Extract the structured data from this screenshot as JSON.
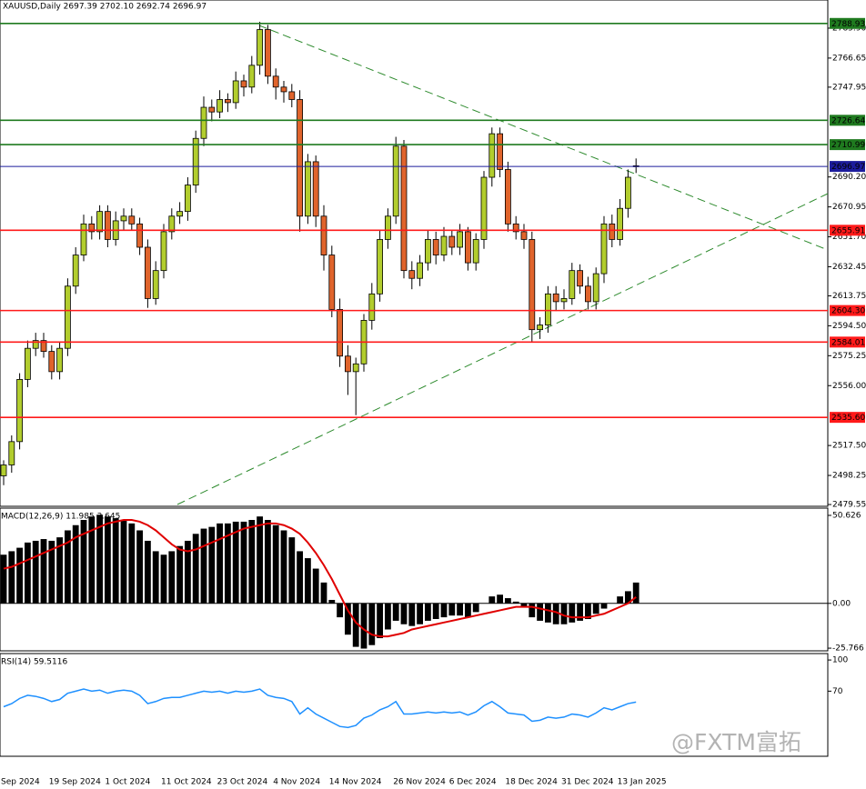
{
  "chart_data": [
    {
      "type": "candlestick",
      "title": "XAUUSD,Daily 2697.39 2702.10 2692.74 2696.97",
      "categories": [
        "Sep 2024",
        null,
        null,
        null,
        null,
        null,
        "19 Sep 2024",
        null,
        null,
        null,
        null,
        null,
        null,
        "1 Oct 2024",
        null,
        null,
        null,
        null,
        null,
        null,
        "11 Oct 2024",
        null,
        null,
        null,
        null,
        null,
        null,
        "23 Oct 2024",
        null,
        null,
        null,
        null,
        null,
        null,
        "4 Nov 2024",
        null,
        null,
        null,
        null,
        null,
        null,
        "14 Nov 2024",
        null,
        null,
        null,
        null,
        null,
        null,
        null,
        "26 Nov 2024",
        null,
        null,
        null,
        null,
        null,
        null,
        "6 Dec 2024",
        null,
        null,
        null,
        null,
        null,
        null,
        "18 Dec 2024",
        null,
        null,
        null,
        null,
        null,
        null,
        "31 Dec 2024",
        null,
        null,
        null,
        null,
        null,
        null,
        "13 Jan 2025",
        null,
        null
      ],
      "open": [
        2498,
        2505,
        2520,
        2560,
        2580,
        2585,
        2578,
        2565,
        2580,
        2620,
        2640,
        2660,
        2655,
        2668,
        2650,
        2662,
        2665,
        2660,
        2645,
        2612,
        2630,
        2655,
        2665,
        2668,
        2685,
        2715,
        2735,
        2732,
        2740,
        2738,
        2752,
        2748,
        2762,
        2785,
        2755,
        2748,
        2745,
        2740,
        2665,
        2700,
        2665,
        2640,
        2605,
        2575,
        2565,
        2570,
        2598,
        2615,
        2650,
        2665,
        2710,
        2630,
        2625,
        2635,
        2650,
        2640,
        2652,
        2645,
        2655,
        2635,
        2650,
        2690,
        2718,
        2695,
        2660,
        2655,
        2650,
        2592,
        2595,
        2615,
        2610,
        2612,
        2630,
        2620,
        2610,
        2628,
        2660,
        2650,
        2670,
        2697.39
      ],
      "high": [
        2508,
        2524,
        2564,
        2585,
        2590,
        2590,
        2582,
        2584,
        2625,
        2645,
        2666,
        2665,
        2672,
        2672,
        2668,
        2670,
        2670,
        2664,
        2650,
        2636,
        2660,
        2670,
        2674,
        2690,
        2720,
        2742,
        2740,
        2746,
        2744,
        2758,
        2756,
        2768,
        2790,
        2788,
        2760,
        2752,
        2750,
        2746,
        2705,
        2704,
        2672,
        2646,
        2612,
        2582,
        2574,
        2602,
        2622,
        2656,
        2670,
        2716,
        2714,
        2636,
        2640,
        2656,
        2655,
        2658,
        2656,
        2660,
        2658,
        2654,
        2694,
        2722,
        2722,
        2700,
        2665,
        2660,
        2655,
        2600,
        2620,
        2620,
        2618,
        2635,
        2634,
        2626,
        2632,
        2665,
        2666,
        2676,
        2695,
        2702.1
      ],
      "low": [
        2492,
        2500,
        2515,
        2555,
        2575,
        2574,
        2560,
        2560,
        2575,
        2615,
        2636,
        2650,
        2650,
        2645,
        2646,
        2656,
        2656,
        2640,
        2606,
        2608,
        2625,
        2650,
        2660,
        2662,
        2680,
        2710,
        2726,
        2728,
        2732,
        2734,
        2742,
        2744,
        2756,
        2750,
        2740,
        2738,
        2735,
        2655,
        2660,
        2658,
        2630,
        2600,
        2568,
        2550,
        2537,
        2565,
        2592,
        2610,
        2644,
        2660,
        2625,
        2618,
        2620,
        2630,
        2634,
        2636,
        2640,
        2640,
        2630,
        2630,
        2644,
        2684,
        2690,
        2655,
        2650,
        2644,
        2584,
        2586,
        2590,
        2604,
        2605,
        2608,
        2615,
        2605,
        2605,
        2622,
        2645,
        2646,
        2664,
        2692.74
      ],
      "close": [
        2505,
        2520,
        2560,
        2580,
        2585,
        2578,
        2565,
        2580,
        2620,
        2640,
        2660,
        2655,
        2668,
        2650,
        2662,
        2665,
        2660,
        2645,
        2612,
        2630,
        2655,
        2665,
        2668,
        2685,
        2715,
        2735,
        2732,
        2740,
        2738,
        2752,
        2748,
        2762,
        2785,
        2755,
        2748,
        2745,
        2740,
        2665,
        2700,
        2665,
        2640,
        2605,
        2575,
        2565,
        2570,
        2598,
        2615,
        2650,
        2665,
        2710,
        2630,
        2625,
        2635,
        2650,
        2640,
        2652,
        2645,
        2655,
        2635,
        2650,
        2690,
        2718,
        2695,
        2660,
        2655,
        2650,
        2592,
        2595,
        2615,
        2610,
        2612,
        2630,
        2620,
        2610,
        2628,
        2660,
        2650,
        2670,
        2690,
        2696.97
      ],
      "up_color": "#b2cd2e",
      "down_color": "#e0642c",
      "ylim": [
        2478.4,
        2804.0
      ],
      "yticks": [
        {
          "value": 2785.9,
          "label": "2785.90"
        },
        2766.65,
        2747.95,
        {
          "value": 2690.2,
          "label": "2690.20"
        },
        2670.95,
        {
          "value": 2651.7,
          "label": "2651.70"
        },
        2632.45,
        2613.75,
        {
          "value": 2594.5,
          "label": "2594.50"
        },
        2575.25,
        {
          "value": 2556.0,
          "label": "2556.00"
        },
        {
          "value": 2517.5,
          "label": "2517.50"
        },
        2498.25,
        2479.55
      ],
      "levels": [
        {
          "value": 2788.93,
          "label": "2788.93",
          "color": "#1f7a1f"
        },
        {
          "value": 2726.64,
          "label": "2726.64",
          "color": "#1f7a1f"
        },
        {
          "value": 2710.99,
          "label": "2710.99",
          "color": "#1f7a1f"
        },
        {
          "value": 2696.97,
          "label": "2696.97",
          "color": "#1c1c9c"
        },
        {
          "value": 2655.91,
          "label": "2655.91",
          "color": "#ff1a1a"
        },
        {
          "value": 2604.3,
          "label": "2604.30",
          "color": "#ff1a1a"
        },
        {
          "value": 2584.01,
          "label": "2584.01",
          "color": "#ff1a1a"
        },
        {
          "value": 2535.6,
          "label": "2535.60",
          "color": "#ff1a1a"
        }
      ]
    },
    {
      "type": "macd",
      "title": "MACD(12,26,9) 11.985 3.645",
      "histogram": {
        "color": "#000000",
        "values": [
          28,
          30,
          32,
          35,
          36,
          37,
          36,
          38,
          42,
          45,
          48,
          50,
          51,
          50,
          49,
          48,
          46,
          42,
          36,
          30,
          28,
          30,
          33,
          36,
          40,
          43,
          44,
          46,
          46,
          47,
          47,
          48,
          50,
          48,
          45,
          42,
          38,
          30,
          26,
          20,
          12,
          2,
          -8,
          -18,
          -25,
          -26,
          -24,
          -20,
          -15,
          -10,
          -12,
          -13,
          -12,
          -10,
          -9,
          -8,
          -7,
          -7,
          -8,
          -5,
          0,
          4,
          5,
          3,
          1,
          -2,
          -8,
          -10,
          -11,
          -12,
          -12,
          -11,
          -10,
          -9,
          -6,
          -3,
          0,
          4,
          7,
          11.985
        ]
      },
      "signal": {
        "color": "#e00000",
        "values": [
          20,
          21,
          23,
          25,
          27,
          29,
          31,
          33,
          35,
          38,
          40,
          42,
          44,
          46,
          47,
          48,
          48,
          47,
          45,
          42,
          38,
          34,
          31,
          30,
          31,
          33,
          35,
          37,
          39,
          41,
          43,
          44,
          45,
          46,
          46,
          45,
          43,
          40,
          35,
          29,
          22,
          14,
          5,
          -4,
          -11,
          -15,
          -18,
          -19,
          -19,
          -18,
          -17,
          -15,
          -14,
          -13,
          -12,
          -11,
          -10,
          -9,
          -8,
          -7,
          -6,
          -5,
          -4,
          -3,
          -2,
          -2,
          -2,
          -3,
          -4,
          -5,
          -7,
          -8,
          -8,
          -8,
          -7,
          -6,
          -4,
          -2,
          0,
          3.645
        ]
      },
      "ylim": [
        -27.3,
        54.8
      ],
      "yticks": [
        50.626,
        {
          "value": 0,
          "label": "0.00"
        },
        -25.766
      ]
    },
    {
      "type": "line",
      "title": "RSI(14) 59.5116",
      "color": "#1e90ff",
      "values": [
        55,
        58,
        63,
        66,
        65,
        63,
        60,
        62,
        68,
        70,
        72,
        70,
        71,
        68,
        70,
        71,
        70,
        66,
        58,
        60,
        63,
        64,
        64,
        66,
        68,
        70,
        69,
        70,
        68,
        70,
        69,
        70,
        72,
        66,
        64,
        63,
        60,
        48,
        54,
        48,
        44,
        40,
        36,
        35,
        37,
        44,
        47,
        52,
        55,
        60,
        48,
        48,
        49,
        50,
        49,
        50,
        49,
        50,
        47,
        50,
        56,
        60,
        55,
        49,
        48,
        47,
        41,
        42,
        45,
        44,
        45,
        48,
        47,
        45,
        49,
        54,
        52,
        55,
        58,
        59.5116
      ],
      "ylim": [
        7.3,
        106.2
      ],
      "yticks": [
        70,
        100
      ]
    }
  ],
  "watermark": "@FXTM富拓"
}
